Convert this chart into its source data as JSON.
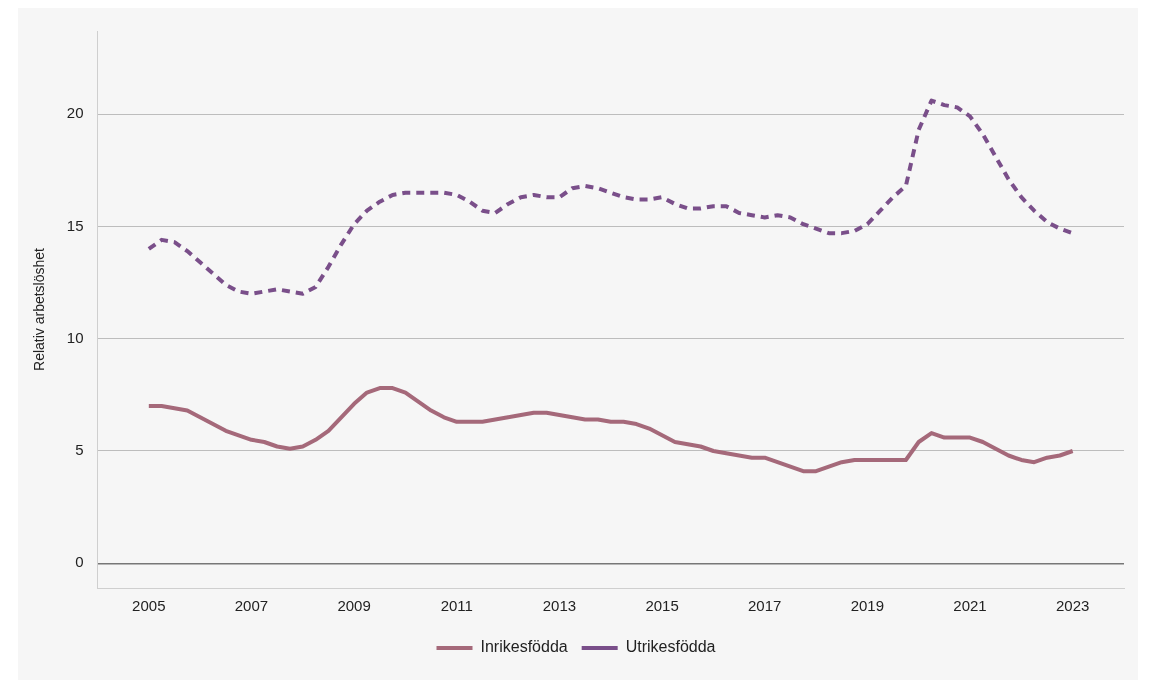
{
  "chart_data": {
    "type": "line",
    "ylabel": "Relativ arbetslöshet",
    "x": [
      2005,
      2005.25,
      2005.5,
      2005.75,
      2006,
      2006.25,
      2006.5,
      2006.75,
      2007,
      2007.25,
      2007.5,
      2007.75,
      2008,
      2008.25,
      2008.5,
      2008.75,
      2009,
      2009.25,
      2009.5,
      2009.75,
      2010,
      2010.25,
      2010.5,
      2010.75,
      2011,
      2011.25,
      2011.5,
      2011.75,
      2012,
      2012.25,
      2012.5,
      2012.75,
      2013,
      2013.25,
      2013.5,
      2013.75,
      2014,
      2014.25,
      2014.5,
      2014.75,
      2015,
      2015.25,
      2015.5,
      2015.75,
      2016,
      2016.25,
      2016.5,
      2016.75,
      2017,
      2017.25,
      2017.5,
      2017.75,
      2018,
      2018.25,
      2018.5,
      2018.75,
      2019,
      2019.25,
      2019.5,
      2019.75,
      2020,
      2020.25,
      2020.5,
      2020.75,
      2021,
      2021.25,
      2021.5,
      2021.75,
      2022,
      2022.25,
      2022.5,
      2022.75,
      2023
    ],
    "series": [
      {
        "name": "Inrikesfödda",
        "color": "#a5697a",
        "line_style": "solid",
        "values": [
          7.0,
          7.0,
          6.9,
          6.8,
          6.5,
          6.2,
          5.9,
          5.7,
          5.5,
          5.4,
          5.2,
          5.1,
          5.2,
          5.5,
          5.9,
          6.5,
          7.1,
          7.6,
          7.8,
          7.8,
          7.6,
          7.2,
          6.8,
          6.5,
          6.3,
          6.3,
          6.3,
          6.4,
          6.5,
          6.6,
          6.7,
          6.7,
          6.6,
          6.5,
          6.4,
          6.4,
          6.3,
          6.3,
          6.2,
          6.0,
          5.7,
          5.4,
          5.3,
          5.2,
          5.0,
          4.9,
          4.8,
          4.7,
          4.7,
          4.5,
          4.3,
          4.1,
          4.1,
          4.3,
          4.5,
          4.6,
          4.6,
          4.6,
          4.6,
          4.6,
          5.4,
          5.8,
          5.6,
          5.6,
          5.6,
          5.4,
          5.1,
          4.8,
          4.6,
          4.5,
          4.7,
          4.8,
          5.0
        ]
      },
      {
        "name": "Utrikesfödda",
        "color": "#7a4f8a",
        "line_style": "dashed",
        "values": [
          14.0,
          14.4,
          14.3,
          13.9,
          13.4,
          12.9,
          12.4,
          12.1,
          12.0,
          12.1,
          12.2,
          12.1,
          12.0,
          12.3,
          13.2,
          14.2,
          15.1,
          15.7,
          16.1,
          16.4,
          16.5,
          16.5,
          16.5,
          16.5,
          16.4,
          16.1,
          15.7,
          15.6,
          16.0,
          16.3,
          16.4,
          16.3,
          16.3,
          16.7,
          16.8,
          16.7,
          16.5,
          16.3,
          16.2,
          16.2,
          16.3,
          16.0,
          15.8,
          15.8,
          15.9,
          15.9,
          15.6,
          15.5,
          15.4,
          15.5,
          15.4,
          15.1,
          14.9,
          14.7,
          14.7,
          14.8,
          15.1,
          15.7,
          16.3,
          16.8,
          19.3,
          20.6,
          20.4,
          20.3,
          19.9,
          19.1,
          18.1,
          17.1,
          16.3,
          15.7,
          15.2,
          14.9,
          14.7
        ]
      }
    ],
    "xlim": [
      2004,
      2024
    ],
    "xticks": [
      2005,
      2007,
      2009,
      2011,
      2013,
      2015,
      2017,
      2019,
      2021,
      2023
    ],
    "ylim": [
      -1.1,
      23.7
    ],
    "yticks": [
      0,
      5,
      10,
      15,
      20
    ],
    "grid": "y",
    "legend": "bottom",
    "marker": "none"
  }
}
